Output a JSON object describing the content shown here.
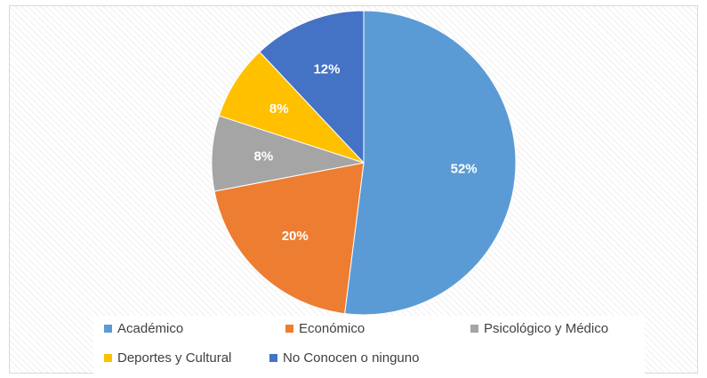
{
  "chart_data": {
    "type": "pie",
    "title": "",
    "categories": [
      "Académico",
      "Económico",
      "Psicológico y Médico",
      "Deportes y Cultural",
      "No Conocen o ninguno"
    ],
    "values": [
      52,
      20,
      8,
      8,
      12
    ],
    "labels": [
      "52%",
      "20%",
      "8%",
      "8%",
      "12%"
    ],
    "colors": [
      "#5b9bd5",
      "#ed7d31",
      "#a5a5a5",
      "#ffc000",
      "#4472c4"
    ],
    "legend_position": "bottom",
    "start_angle_deg": 0,
    "direction": "clockwise"
  }
}
